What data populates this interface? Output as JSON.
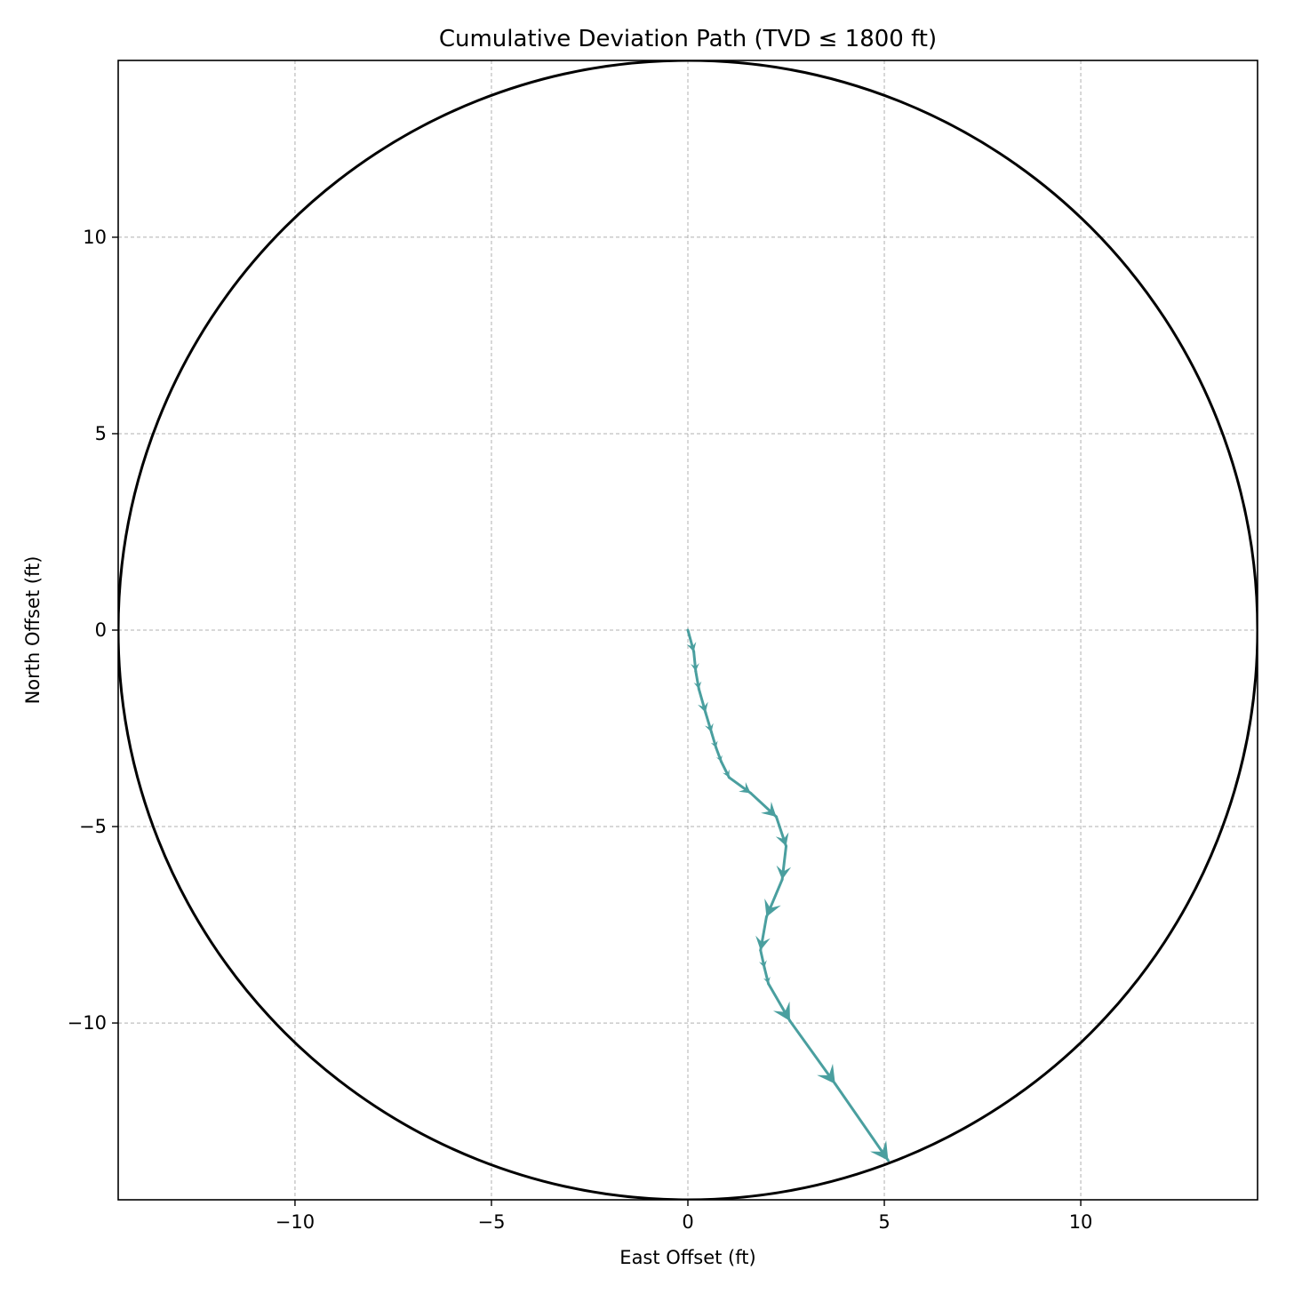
{
  "chart_data": {
    "type": "line",
    "title": "Cumulative Deviation Path (TVD ≤ 1800 ft)",
    "xlabel": "East Offset (ft)",
    "ylabel": "North Offset (ft)",
    "xlim": [
      -14.5,
      14.5
    ],
    "ylim": [
      -14.5,
      14.5
    ],
    "xticks": [
      -10,
      -5,
      0,
      5,
      10
    ],
    "yticks": [
      -10,
      -5,
      0,
      5,
      10
    ],
    "xtick_labels": [
      "−10",
      "−5",
      "0",
      "5",
      "10"
    ],
    "ytick_labels": [
      "−10",
      "−5",
      "0",
      "5",
      "10"
    ],
    "grid": true,
    "boundary_circle_radius": 14.5,
    "colors": {
      "path": "#4a9f9f",
      "circle": "#000000",
      "grid": "#b0b0b0"
    },
    "series": [
      {
        "points": [
          [
            0.0,
            0.0
          ],
          [
            0.15,
            -0.55
          ],
          [
            0.2,
            -1.05
          ],
          [
            0.28,
            -1.5
          ],
          [
            0.45,
            -2.1
          ],
          [
            0.6,
            -2.6
          ],
          [
            0.72,
            -3.0
          ],
          [
            0.85,
            -3.35
          ],
          [
            1.05,
            -3.75
          ],
          [
            1.6,
            -4.15
          ],
          [
            2.25,
            -4.75
          ],
          [
            2.5,
            -5.5
          ],
          [
            2.4,
            -6.35
          ],
          [
            2.0,
            -7.3
          ],
          [
            1.85,
            -8.15
          ],
          [
            1.95,
            -8.6
          ],
          [
            2.05,
            -9.0
          ],
          [
            2.6,
            -9.95
          ],
          [
            3.75,
            -11.55
          ],
          [
            5.1,
            -13.5
          ]
        ]
      }
    ]
  }
}
